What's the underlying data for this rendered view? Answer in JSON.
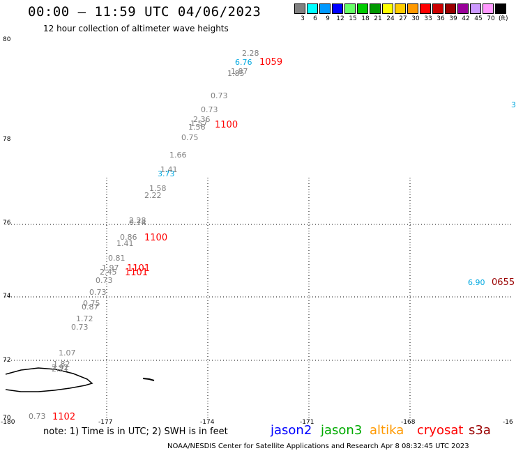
{
  "title": "00:00 – 11:59 UTC 04/06/2023",
  "subtitle": "12 hour collection of altimeter wave heights",
  "legend": {
    "units": "(ft)",
    "items": [
      {
        "label": "3",
        "color": "#808080"
      },
      {
        "label": "6",
        "color": "#00ffff"
      },
      {
        "label": "9",
        "color": "#0099ff"
      },
      {
        "label": "12",
        "color": "#0000ff"
      },
      {
        "label": "15",
        "color": "#66ff66"
      },
      {
        "label": "18",
        "color": "#00cc00"
      },
      {
        "label": "21",
        "color": "#009900"
      },
      {
        "label": "24",
        "color": "#ffff00"
      },
      {
        "label": "27",
        "color": "#ffcc00"
      },
      {
        "label": "30",
        "color": "#ff9900"
      },
      {
        "label": "33",
        "color": "#ff0000"
      },
      {
        "label": "36",
        "color": "#cc0000"
      },
      {
        "label": "39",
        "color": "#990000"
      },
      {
        "label": "42",
        "color": "#990099"
      },
      {
        "label": "45",
        "color": "#cc99ff"
      },
      {
        "label": "70",
        "color": "#ff99ff"
      },
      {
        "label": "",
        "color": "#000000"
      }
    ]
  },
  "axes": {
    "lat_labels": [
      "80",
      "78",
      "76",
      "74",
      "72",
      "70"
    ],
    "lon_labels": [
      "-180",
      "-177",
      "-174",
      "-171",
      "-168",
      "-16"
    ]
  },
  "points": [
    {
      "v": "2.28",
      "c": "gray"
    },
    {
      "v": "6.76",
      "c": "cyan"
    },
    {
      "v": "1.87",
      "c": "gray"
    },
    {
      "v": "1.85",
      "c": "gray"
    },
    {
      "v": "0.73",
      "c": "gray"
    },
    {
      "v": "0.73",
      "c": "gray"
    },
    {
      "v": "2.36",
      "c": "gray"
    },
    {
      "v": "1.57",
      "c": "gray"
    },
    {
      "v": "1.56",
      "c": "gray"
    },
    {
      "v": "0.75",
      "c": "gray"
    },
    {
      "v": "1.66",
      "c": "gray"
    },
    {
      "v": "1.41",
      "c": "gray"
    },
    {
      "v": "3.73",
      "c": "cyan"
    },
    {
      "v": "1.58",
      "c": "gray"
    },
    {
      "v": "2.22",
      "c": "gray"
    },
    {
      "v": "2.28",
      "c": "gray"
    },
    {
      "v": "0.74",
      "c": "gray"
    },
    {
      "v": "0.86",
      "c": "gray"
    },
    {
      "v": "1.41",
      "c": "gray"
    },
    {
      "v": "0.81",
      "c": "gray"
    },
    {
      "v": "1.97",
      "c": "gray"
    },
    {
      "v": "2.45",
      "c": "gray"
    },
    {
      "v": "0.73",
      "c": "gray"
    },
    {
      "v": "0.73",
      "c": "gray"
    },
    {
      "v": "0.75",
      "c": "gray"
    },
    {
      "v": "0.87",
      "c": "gray"
    },
    {
      "v": "1.72",
      "c": "gray"
    },
    {
      "v": "0.73",
      "c": "gray"
    },
    {
      "v": "1.07",
      "c": "gray"
    },
    {
      "v": "1.82",
      "c": "gray"
    },
    {
      "v": "2.92",
      "c": "gray"
    },
    {
      "v": "2.21",
      "c": "gray"
    },
    {
      "v": "0.73",
      "c": "gray"
    },
    {
      "v": "6.90",
      "c": "cyan"
    },
    {
      "v": "3",
      "c": "cyan"
    }
  ],
  "times": [
    {
      "t": "1059",
      "c": "red"
    },
    {
      "t": "1100",
      "c": "red"
    },
    {
      "t": "1100",
      "c": "red"
    },
    {
      "t": "1101",
      "c": "red"
    },
    {
      "t": "1101",
      "c": "red"
    },
    {
      "t": "1102",
      "c": "red"
    },
    {
      "t": "0655",
      "c": "darkred"
    }
  ],
  "colors": {
    "gray": "#808080",
    "cyan": "#00a8e0",
    "red": "#ff0000",
    "darkred": "#990000"
  },
  "note": "note:  1) Time is in UTC; 2) SWH is in feet",
  "satellites": [
    {
      "name": "jason2",
      "color": "#0000ff"
    },
    {
      "name": "jason3",
      "color": "#00aa00"
    },
    {
      "name": "altika",
      "color": "#ff9900"
    },
    {
      "name": "cryosat",
      "color": "#ff0000"
    },
    {
      "name": "s3a",
      "color": "#990000"
    }
  ],
  "credit": "NOAA/NESDIS Center for Satellite Applications and Research    Apr  8 08:32:45 UTC 2023"
}
